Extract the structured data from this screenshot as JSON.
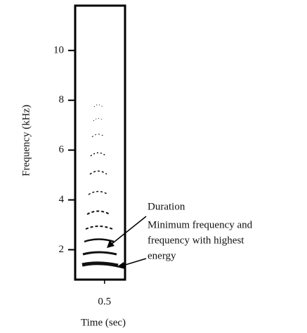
{
  "chart_data": {
    "type": "spectrogram",
    "x_label": "Time (sec)",
    "y_label": "Frequency (kHz)",
    "xlim": [
      0,
      0.85
    ],
    "xticks": [
      {
        "value": 0.5,
        "label": "0.5"
      }
    ],
    "ylim": [
      0.8,
      11.8
    ],
    "yticks": [
      2,
      4,
      6,
      8,
      10
    ],
    "annotations": [
      "Duration",
      "Minimum frequency and",
      "frequency with highest",
      "energy"
    ]
  }
}
